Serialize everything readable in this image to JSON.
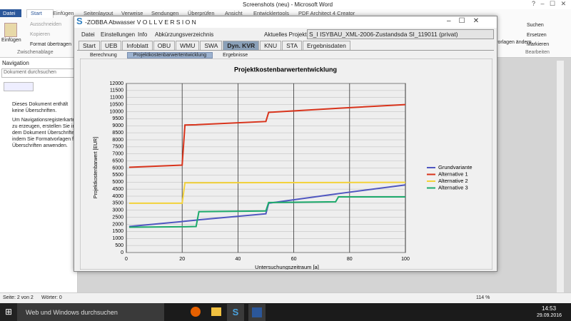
{
  "word": {
    "title": "Screenshots (neu) - Microsoft Word",
    "tabs": [
      "Datei",
      "Start",
      "Einfügen",
      "Seitenlayout",
      "Verweise",
      "Sendungen",
      "Überprüfen",
      "Ansicht",
      "Entwicklertools",
      "PDF Architect 4 Creator"
    ],
    "clipboard": {
      "paste": "Einfügen",
      "cut": "Ausschneiden",
      "copy": "Kopieren",
      "format": "Format übertragen",
      "group": "Zwischenablage"
    },
    "editing": {
      "styles": "vorlagen ändern",
      "find": "Suchen",
      "replace": "Ersetzen",
      "select": "Markieren",
      "group": "Bearbeiten"
    },
    "navigation": {
      "title": "Navigation",
      "search": "Dokument durchsuchen",
      "message": "Dieses Dokument enthält keine Überschriften.",
      "hint": "Um Navigationsregisterkarten zu erzeugen, erstellen Sie in dem Dokument Überschriften, indem Sie Formatvorlagen für Überschriften anwenden."
    },
    "status": {
      "page": "Seite: 2 von 2",
      "words": "Wörter: 0",
      "zoom": "114 %"
    }
  },
  "taskbar": {
    "search": "Web und Windows durchsuchen",
    "time": "14:53",
    "date": "29.09.2016"
  },
  "app": {
    "title": "-ZOBBA Abwasser V O L L V E R S I O N",
    "menu": [
      "Datei",
      "Einstellungen",
      "Info",
      "Abkürzungsverzeichnis"
    ],
    "project_label": "Aktuelles Projekt:",
    "project": "S_I ISYBAU_XML-2006-Zustandsda SI_119011 (privat)",
    "tabs": [
      "Start",
      "UEB",
      "Infoblatt",
      "OBU",
      "WMU",
      "SWA",
      "Dyn. KVR",
      "KNU",
      "STA",
      "Ergebnisdaten"
    ],
    "subtabs": [
      "Berechnung",
      "Projektkostenbarwertentwicklung",
      "Ergebnisse"
    ]
  },
  "chart_data": {
    "type": "line",
    "title": "Projektkostenbarwertentwicklung",
    "x_label": "Untersuchungszeitraum [a]",
    "y_label": "Projektkostenbarwert [EUR]",
    "x": [
      1,
      20,
      21,
      25,
      26,
      50,
      51,
      75,
      76,
      100
    ],
    "series": [
      {
        "name": "Grundvariante",
        "color": "#4f56c0",
        "values": [
          1850,
          2200,
          2220,
          2300,
          2320,
          2750,
          3500,
          4150,
          4180,
          4800
        ]
      },
      {
        "name": "Alternative 1",
        "color": "#d8331b",
        "values": [
          6050,
          6200,
          9050,
          9070,
          9080,
          9300,
          9950,
          10230,
          10240,
          10500
        ]
      },
      {
        "name": "Alternative 2",
        "color": "#f3d23a",
        "values": [
          3500,
          3500,
          4950,
          4950,
          4950,
          4960,
          4960,
          4970,
          4970,
          4980
        ]
      },
      {
        "name": "Alternative 3",
        "color": "#1daa6c",
        "values": [
          1800,
          1830,
          1830,
          1850,
          2900,
          2950,
          3550,
          3600,
          3950,
          3950
        ]
      }
    ],
    "xlim": [
      0,
      100
    ],
    "xticks": [
      0,
      20,
      40,
      60,
      80,
      100
    ],
    "ylim": [
      0,
      12000
    ],
    "yticks": [
      0,
      500,
      1000,
      1500,
      2000,
      2500,
      3000,
      3500,
      4000,
      4500,
      5000,
      5500,
      6000,
      6500,
      7000,
      7500,
      8000,
      8500,
      9000,
      9500,
      10000,
      10500,
      11000,
      11500,
      12000
    ],
    "grid": true,
    "legend": "right"
  }
}
